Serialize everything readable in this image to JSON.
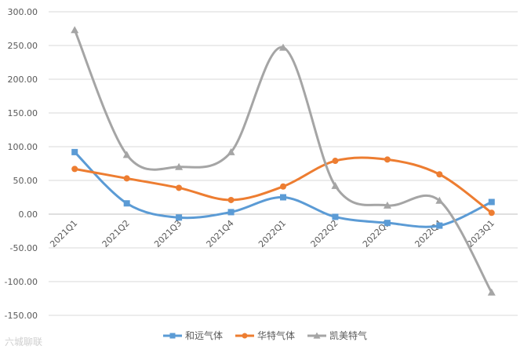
{
  "chart_data": {
    "type": "line",
    "smooth": true,
    "categories": [
      "2021Q1",
      "2021Q2",
      "2021Q3",
      "2021Q4",
      "2022Q1",
      "2022Q2",
      "2022Q3",
      "2022Q4",
      "2023Q1"
    ],
    "ylim": [
      -150,
      300
    ],
    "ytick_step": 50,
    "ytick_labels": [
      "300.00",
      "250.00",
      "200.00",
      "150.00",
      "100.00",
      "50.00",
      "0.00",
      "-50.00",
      "-100.00",
      "-150.00"
    ],
    "grid": true,
    "legend_position": "bottom",
    "series": [
      {
        "name": "和远气体",
        "color": "#5b9bd5",
        "marker": "square",
        "values": [
          92,
          16,
          -5,
          3,
          25,
          -4,
          -13,
          -17,
          18
        ]
      },
      {
        "name": "华特气体",
        "color": "#ed7d31",
        "marker": "circle",
        "values": [
          67,
          53,
          39,
          21,
          41,
          79,
          81,
          59,
          2
        ]
      },
      {
        "name": "凯美特气",
        "color": "#a5a5a5",
        "marker": "triangle",
        "values": [
          273,
          88,
          70,
          92,
          247,
          42,
          13,
          20,
          -116
        ]
      }
    ]
  },
  "watermark": "六城聊联"
}
